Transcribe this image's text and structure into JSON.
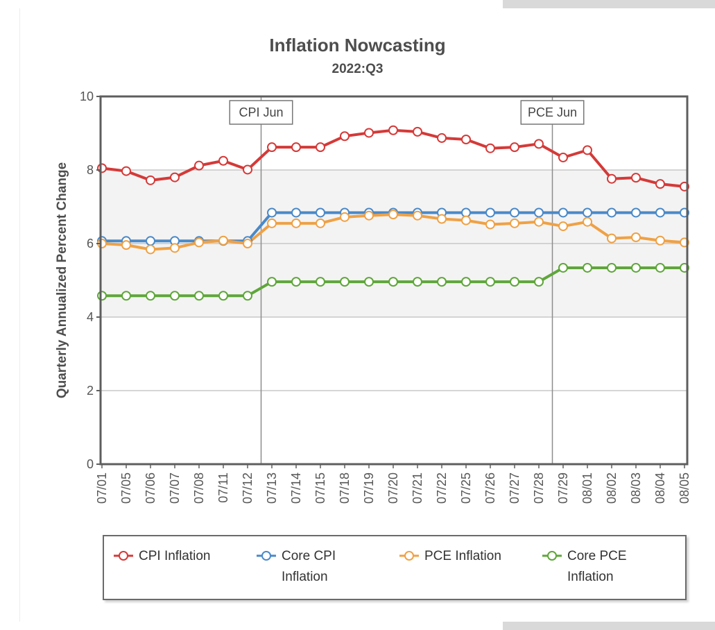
{
  "chart_data": {
    "type": "line",
    "title": "Inflation Nowcasting",
    "subtitle": "2022:Q3",
    "ylabel": "Quarterly Annualized Percent Change",
    "xlabel": "",
    "ylim": [
      0,
      10
    ],
    "yticks": [
      0,
      2,
      4,
      6,
      8,
      10
    ],
    "grid": true,
    "shaded_bands": [
      [
        4,
        6
      ],
      [
        6,
        8
      ]
    ],
    "legend_position": "bottom",
    "categories": [
      "07/01",
      "07/05",
      "07/06",
      "07/07",
      "07/08",
      "07/11",
      "07/12",
      "07/13",
      "07/14",
      "07/15",
      "07/18",
      "07/19",
      "07/20",
      "07/21",
      "07/22",
      "07/25",
      "07/26",
      "07/27",
      "07/28",
      "07/29",
      "08/01",
      "08/02",
      "08/03",
      "08/04",
      "08/05"
    ],
    "annotations": [
      {
        "label": "CPI Jun",
        "at": "07/13"
      },
      {
        "label": "PCE Jun",
        "at": "07/29"
      }
    ],
    "series": [
      {
        "name": "CPI Inflation",
        "color": "#d43a38",
        "values": [
          8.05,
          7.97,
          7.72,
          7.8,
          8.12,
          8.25,
          8.01,
          8.62,
          8.62,
          8.62,
          8.92,
          9.01,
          9.08,
          9.04,
          8.87,
          8.83,
          8.59,
          8.62,
          8.71,
          8.34,
          8.54,
          7.76,
          7.79,
          7.62,
          7.55
        ]
      },
      {
        "name": "Core CPI Inflation",
        "color": "#4a89c8",
        "values": [
          6.07,
          6.07,
          6.07,
          6.07,
          6.07,
          6.07,
          6.07,
          6.84,
          6.84,
          6.84,
          6.84,
          6.84,
          6.84,
          6.84,
          6.84,
          6.84,
          6.84,
          6.84,
          6.84,
          6.84,
          6.84,
          6.84,
          6.84,
          6.84,
          6.84
        ]
      },
      {
        "name": "PCE Inflation",
        "color": "#efa145",
        "values": [
          6.0,
          5.96,
          5.84,
          5.88,
          6.03,
          6.08,
          6.0,
          6.55,
          6.55,
          6.55,
          6.72,
          6.76,
          6.79,
          6.76,
          6.67,
          6.63,
          6.52,
          6.55,
          6.59,
          6.47,
          6.59,
          6.14,
          6.17,
          6.08,
          6.03
        ]
      },
      {
        "name": "Core PCE Inflation",
        "color": "#5fa63a",
        "values": [
          4.58,
          4.58,
          4.58,
          4.58,
          4.58,
          4.58,
          4.58,
          4.96,
          4.96,
          4.96,
          4.96,
          4.96,
          4.96,
          4.96,
          4.96,
          4.96,
          4.96,
          4.96,
          4.96,
          5.34,
          5.34,
          5.34,
          5.34,
          5.34,
          5.34
        ]
      }
    ]
  },
  "legend": {
    "cpi_line1": "CPI Inflation",
    "core_cpi_line1": "Core CPI",
    "core_cpi_line2": "Inflation",
    "pce_line1": "PCE Inflation",
    "core_pce_line1": "Core PCE",
    "core_pce_line2": "Inflation"
  }
}
